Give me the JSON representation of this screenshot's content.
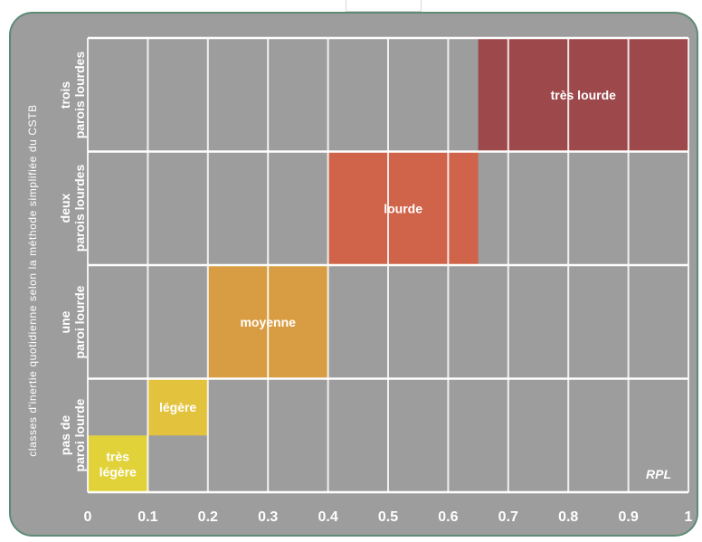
{
  "chart_data": {
    "type": "bar",
    "ylabel": "classes d'inertie quotidienne selon la méthode simplifiée du CSTB",
    "xlabel": "RPL",
    "xlim": [
      0,
      1
    ],
    "x_ticks": [
      "0",
      "0.1",
      "0.2",
      "0.3",
      "0.4",
      "0.5",
      "0.6",
      "0.7",
      "0.8",
      "0.9",
      "1"
    ],
    "x_tick_values": [
      0,
      0.1,
      0.2,
      0.3,
      0.4,
      0.5,
      0.6,
      0.7,
      0.8,
      0.9,
      1
    ],
    "grid": true,
    "rows": [
      {
        "line1": "pas de",
        "line2": "paroi lourde"
      },
      {
        "line1": "une",
        "line2": "paroi lourde"
      },
      {
        "line1": "deux",
        "line2": "parois lourdes"
      },
      {
        "line1": "trois",
        "line2": "parois lourdes"
      }
    ],
    "categories": [
      {
        "label_line1": "très",
        "label_line2": "légère",
        "x_start": 0,
        "x_end": 0.1,
        "row": 0,
        "y_start": 0,
        "y_end": 0.5,
        "color": "#e2d23a"
      },
      {
        "label_line1": "légère",
        "label_line2": "",
        "x_start": 0.1,
        "x_end": 0.2,
        "row": 0,
        "y_start": 0.5,
        "y_end": 1,
        "color": "#e3c33d"
      },
      {
        "label_line1": "moyenne",
        "label_line2": "",
        "x_start": 0.2,
        "x_end": 0.4,
        "row": 1,
        "y_start": 0,
        "y_end": 1,
        "color": "#d89d43"
      },
      {
        "label_line1": "lourde",
        "label_line2": "",
        "x_start": 0.4,
        "x_end": 0.65,
        "row": 2,
        "y_start": 0,
        "y_end": 1,
        "color": "#d0644a"
      },
      {
        "label_line1": "très lourde",
        "label_line2": "",
        "x_start": 0.65,
        "x_end": 1,
        "row": 3,
        "y_start": 0,
        "y_end": 1,
        "color": "#9d484b"
      }
    ]
  }
}
